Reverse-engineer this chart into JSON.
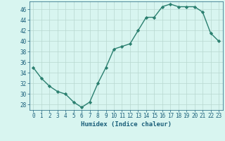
{
  "x": [
    0,
    1,
    2,
    3,
    4,
    5,
    6,
    7,
    8,
    9,
    10,
    11,
    12,
    13,
    14,
    15,
    16,
    17,
    18,
    19,
    20,
    21,
    22,
    23
  ],
  "y": [
    35,
    33,
    31.5,
    30.5,
    30,
    28.5,
    27.5,
    28.5,
    32,
    35,
    38.5,
    39,
    39.5,
    42,
    44.5,
    44.5,
    46.5,
    47,
    46.5,
    46.5,
    46.5,
    45.5,
    41.5,
    40
  ],
  "xlim": [
    -0.5,
    23.5
  ],
  "ylim": [
    27,
    47.5
  ],
  "yticks": [
    28,
    30,
    32,
    34,
    36,
    38,
    40,
    42,
    44,
    46
  ],
  "xticks": [
    0,
    1,
    2,
    3,
    4,
    5,
    6,
    7,
    8,
    9,
    10,
    11,
    12,
    13,
    14,
    15,
    16,
    17,
    18,
    19,
    20,
    21,
    22,
    23
  ],
  "xlabel": "Humidex (Indice chaleur)",
  "line_color": "#2a7f6f",
  "marker": "D",
  "marker_size": 2.2,
  "bg_color": "#d8f5f0",
  "grid_color": "#b8d8d0",
  "xlabel_color": "#1a5f7a",
  "tick_color": "#1a5f7a",
  "line_width": 1.0,
  "tick_fontsize": 5.5,
  "xlabel_fontsize": 6.5
}
